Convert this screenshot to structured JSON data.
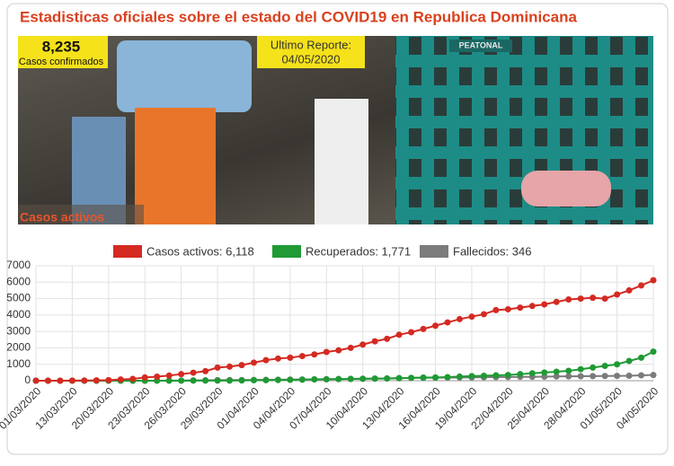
{
  "header": {
    "title": "Estadisticas oficiales sobre el estado del COVID19 en Republica Dominicana",
    "confirmed_value": "8,235",
    "confirmed_label": "Casos confirmados",
    "report_label": "Ultimo Reporte:",
    "report_date": "04/05/2020",
    "photo_sign": "PEATONAL",
    "section_title": "Casos activos"
  },
  "chart_data": {
    "type": "line",
    "categories": [
      "01/03/2020",
      null,
      null,
      "13/03/2020",
      null,
      null,
      "20/03/2020",
      null,
      null,
      "23/03/2020",
      null,
      null,
      "26/03/2020",
      null,
      null,
      "29/03/2020",
      null,
      null,
      "01/04/2020",
      null,
      null,
      "04/04/2020",
      null,
      null,
      "07/04/2020",
      null,
      null,
      "10/04/2020",
      null,
      null,
      "13/04/2020",
      null,
      null,
      "16/04/2020",
      null,
      null,
      "19/04/2020",
      null,
      null,
      "22/04/2020",
      null,
      null,
      "25/04/2020",
      null,
      null,
      "28/04/2020",
      null,
      null,
      "01/05/2020",
      null,
      null,
      "04/05/2020"
    ],
    "series": [
      {
        "name": "Casos activos: 6,118",
        "color": "#d42a22",
        "values": [
          0,
          0,
          0,
          5,
          11,
          21,
          34,
          72,
          112,
          200,
          245,
          312,
          400,
          488,
          581,
          800,
          859,
          950,
          1100,
          1250,
          1350,
          1400,
          1500,
          1600,
          1750,
          1850,
          2000,
          2200,
          2400,
          2550,
          2800,
          2950,
          3150,
          3350,
          3550,
          3750,
          3900,
          4050,
          4300,
          4350,
          4450,
          4550,
          4650,
          4800,
          4950,
          5000,
          5050,
          5000,
          5250,
          5500,
          5800,
          6118
        ]
      },
      {
        "name": "Recuperados: 1,771",
        "color": "#1f9a34",
        "values": [
          0,
          0,
          0,
          0,
          0,
          0,
          0,
          0,
          1,
          1,
          2,
          3,
          3,
          4,
          4,
          5,
          5,
          15,
          25,
          30,
          40,
          50,
          60,
          80,
          90,
          100,
          110,
          120,
          130,
          140,
          150,
          170,
          190,
          200,
          220,
          250,
          280,
          300,
          330,
          350,
          400,
          450,
          500,
          550,
          600,
          700,
          800,
          900,
          1000,
          1200,
          1400,
          1771
        ]
      },
      {
        "name": "Fallecidos: 346",
        "color": "#7b7b7b",
        "values": [
          0,
          0,
          0,
          0,
          0,
          0,
          0,
          0,
          1,
          2,
          3,
          6,
          10,
          20,
          28,
          35,
          39,
          42,
          51,
          57,
          60,
          68,
          75,
          82,
          86,
          98,
          108,
          118,
          126,
          135,
          160,
          173,
          177,
          183,
          189,
          196,
          200,
          210,
          217,
          226,
          235,
          241,
          245,
          260,
          265,
          273,
          282,
          286,
          293,
          301,
          326,
          346
        ]
      }
    ],
    "ylim": [
      0,
      7000
    ],
    "yticks": [
      0,
      1000,
      2000,
      3000,
      4000,
      5000,
      6000,
      7000
    ],
    "grid": true
  }
}
